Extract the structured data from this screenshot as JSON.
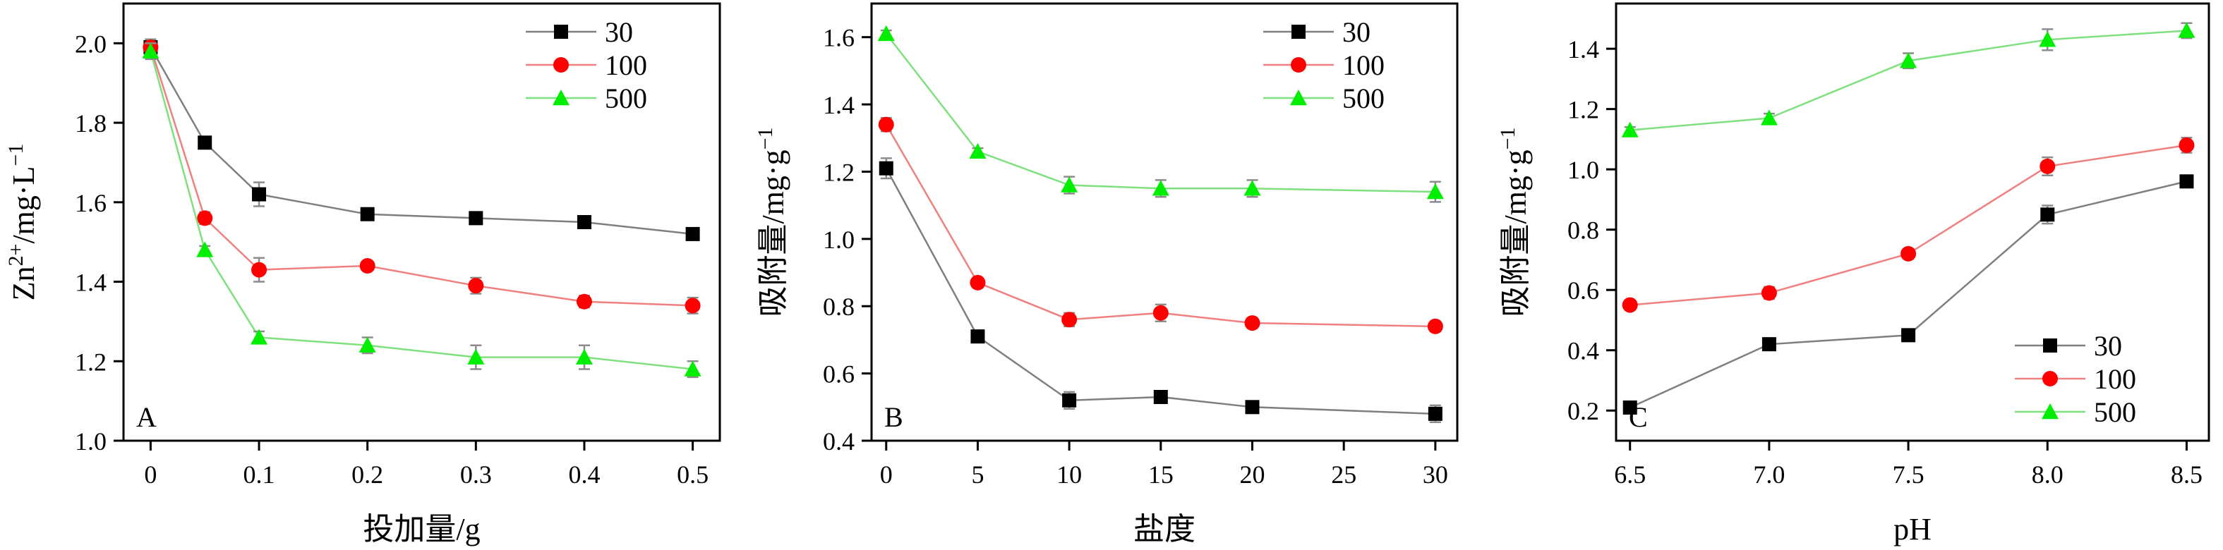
{
  "colors": {
    "s30_marker": "#000000",
    "s30_line": "#7f7f7f",
    "s100_marker": "#ff0000",
    "s100_line": "#f08080",
    "s500_marker": "#00ee00",
    "s500_line": "#7fe07f",
    "error_bar": "#8c8c8c"
  },
  "chart_data": [
    {
      "id": "A",
      "type": "line",
      "panel_label": "A",
      "xlabel": "投加量/g",
      "ylabel_main": "Zn",
      "ylabel_sup": "2+",
      "ylabel_rest": "/mg·L",
      "ylabel_sup2": "−1",
      "xlim": [
        -0.025,
        0.525
      ],
      "ylim": [
        1.0,
        2.1
      ],
      "xticks": [
        0,
        0.1,
        0.2,
        0.3,
        0.4,
        0.5
      ],
      "xtick_labels": [
        "0",
        "0.1",
        "0.2",
        "0.3",
        "0.4",
        "0.5"
      ],
      "yticks": [
        1.0,
        1.2,
        1.4,
        1.6,
        1.8,
        2.0
      ],
      "ytick_labels": [
        "1.0",
        "1.2",
        "1.4",
        "1.6",
        "1.8",
        "2.0"
      ],
      "legend_position": "top-right",
      "x": [
        0,
        0.05,
        0.1,
        0.2,
        0.3,
        0.4,
        0.5
      ],
      "series": [
        {
          "name": "30",
          "marker": "square",
          "values": [
            1.99,
            1.75,
            1.62,
            1.57,
            1.56,
            1.55,
            1.52
          ],
          "errors": [
            0.02,
            0.01,
            0.03,
            0.01,
            0.015,
            0.01,
            0.01
          ]
        },
        {
          "name": "100",
          "marker": "circle",
          "values": [
            1.99,
            1.56,
            1.43,
            1.44,
            1.39,
            1.35,
            1.34
          ],
          "errors": [
            0.02,
            0.015,
            0.03,
            0.01,
            0.02,
            0.015,
            0.02
          ]
        },
        {
          "name": "500",
          "marker": "triangle",
          "values": [
            1.98,
            1.48,
            1.26,
            1.24,
            1.21,
            1.21,
            1.18
          ],
          "errors": [
            0.02,
            0.01,
            0.015,
            0.02,
            0.03,
            0.03,
            0.02
          ]
        }
      ]
    },
    {
      "id": "B",
      "type": "line",
      "panel_label": "B",
      "xlabel": "盐度",
      "ylabel_main": "吸附量/mg·g",
      "ylabel_sup": "−1",
      "ylabel_rest": "",
      "ylabel_sup2": "",
      "xlim": [
        -0.8,
        31.2
      ],
      "ylim": [
        0.4,
        1.7
      ],
      "xticks": [
        0,
        5,
        10,
        15,
        20,
        25,
        30
      ],
      "xtick_labels": [
        "0",
        "5",
        "10",
        "15",
        "20",
        "25",
        "30"
      ],
      "yticks": [
        0.4,
        0.6,
        0.8,
        1.0,
        1.2,
        1.4,
        1.6
      ],
      "ytick_labels": [
        "0.4",
        "0.6",
        "0.8",
        "1.0",
        "1.2",
        "1.4",
        "1.6"
      ],
      "legend_position": "top-right",
      "x": [
        0,
        5,
        10,
        15,
        20,
        30
      ],
      "series": [
        {
          "name": "30",
          "marker": "square",
          "values": [
            1.21,
            0.71,
            0.52,
            0.53,
            0.5,
            0.48
          ],
          "errors": [
            0.03,
            0.015,
            0.025,
            0.015,
            0.015,
            0.025
          ]
        },
        {
          "name": "100",
          "marker": "circle",
          "values": [
            1.34,
            0.87,
            0.76,
            0.78,
            0.75,
            0.74
          ],
          "errors": [
            0.02,
            0.015,
            0.02,
            0.025,
            0.015,
            0.015
          ]
        },
        {
          "name": "500",
          "marker": "triangle",
          "values": [
            1.61,
            1.26,
            1.16,
            1.15,
            1.15,
            1.14
          ],
          "errors": [
            0.01,
            0.01,
            0.025,
            0.025,
            0.025,
            0.03
          ]
        }
      ]
    },
    {
      "id": "C",
      "type": "line",
      "panel_label": "C",
      "xlabel": "pH",
      "ylabel_main": "吸附量/mg·g",
      "ylabel_sup": "−1",
      "ylabel_rest": "",
      "ylabel_sup2": "",
      "xlim": [
        6.45,
        8.58
      ],
      "ylim": [
        0.1,
        1.55
      ],
      "xticks": [
        6.5,
        7.0,
        7.5,
        8.0,
        8.5
      ],
      "xtick_labels": [
        "6.5",
        "7.0",
        "7.5",
        "8.0",
        "8.5"
      ],
      "yticks": [
        0.2,
        0.4,
        0.6,
        0.8,
        1.0,
        1.2,
        1.4
      ],
      "ytick_labels": [
        "0.2",
        "0.4",
        "0.6",
        "0.8",
        "1.0",
        "1.2",
        "1.4"
      ],
      "legend_position": "bottom-right",
      "x": [
        6.5,
        7.0,
        7.5,
        8.0,
        8.5
      ],
      "series": [
        {
          "name": "30",
          "marker": "square",
          "values": [
            0.21,
            0.42,
            0.45,
            0.85,
            0.96
          ],
          "errors": [
            0.01,
            0.02,
            0.015,
            0.03,
            0.02
          ]
        },
        {
          "name": "100",
          "marker": "circle",
          "values": [
            0.55,
            0.59,
            0.72,
            1.01,
            1.08
          ],
          "errors": [
            0.015,
            0.02,
            0.015,
            0.03,
            0.025
          ]
        },
        {
          "name": "500",
          "marker": "triangle",
          "values": [
            1.13,
            1.17,
            1.36,
            1.43,
            1.46
          ],
          "errors": [
            0.01,
            0.015,
            0.025,
            0.035,
            0.025
          ]
        }
      ]
    }
  ]
}
